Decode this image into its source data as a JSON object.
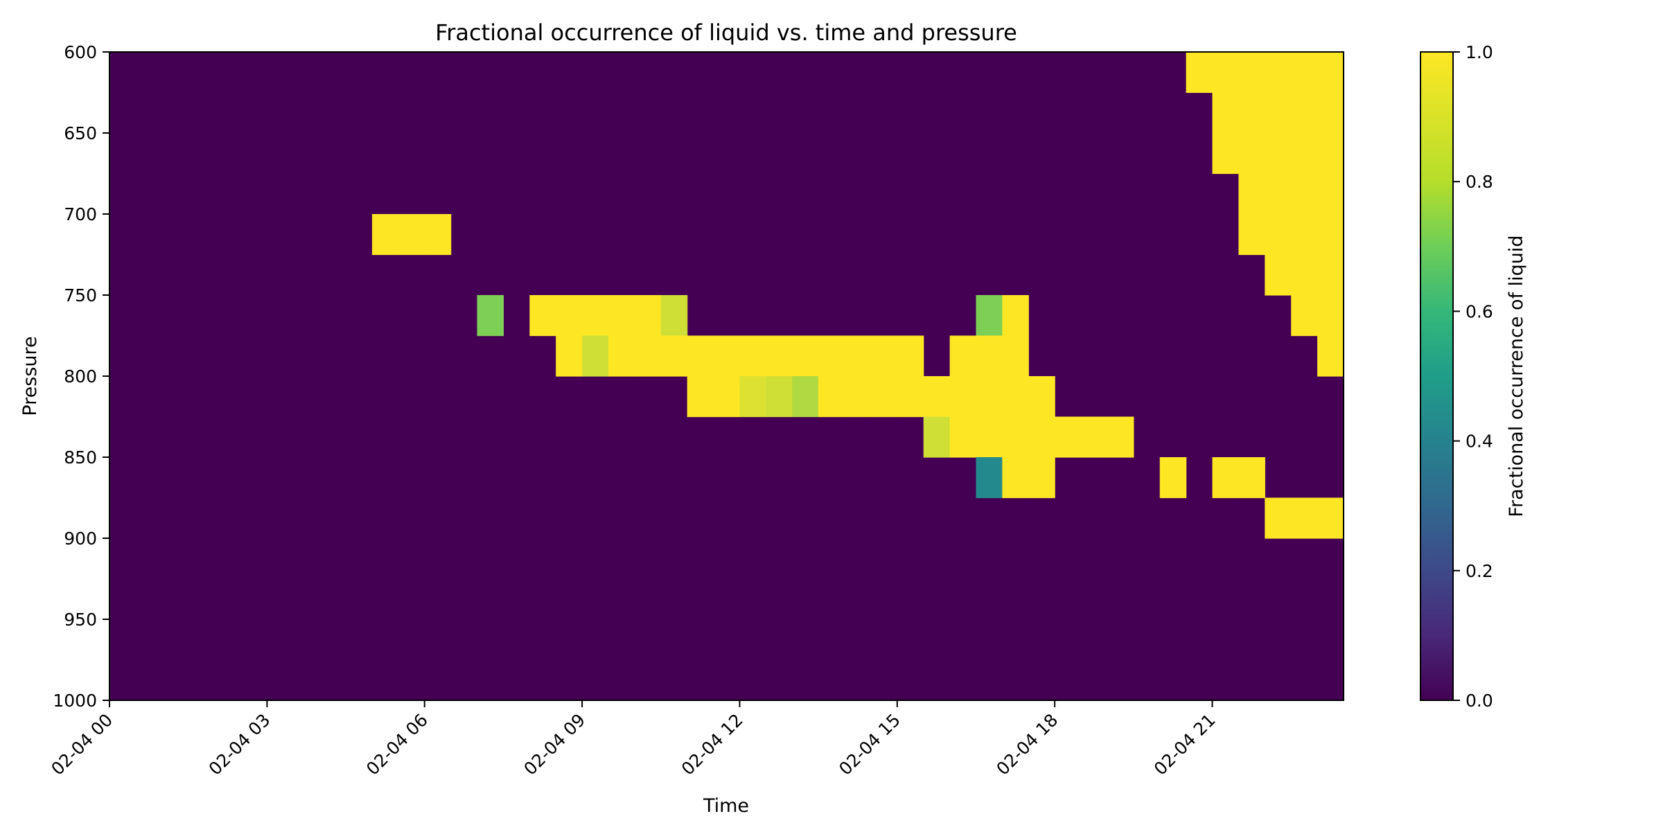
{
  "chart_data": {
    "type": "heatmap",
    "title": "Fractional occurrence of liquid vs. time and pressure",
    "xlabel": "Time",
    "ylabel": "Pressure",
    "colorbar_label": "Fractional occurrence of liquid",
    "colormap": "viridis",
    "colormap_stops": [
      "#440154",
      "#3b528b",
      "#21918c",
      "#5ec962",
      "#fde725"
    ],
    "value_range": [
      0,
      1
    ],
    "x_ticks": [
      "02-04 00",
      "02-04 03",
      "02-04 06",
      "02-04 09",
      "02-04 12",
      "02-04 15",
      "02-04 18",
      "02-04 21"
    ],
    "y_ticks": [
      "600",
      "650",
      "700",
      "750",
      "800",
      "850",
      "900",
      "950",
      "1000"
    ],
    "colorbar_ticks": [
      "0.0",
      "0.2",
      "0.4",
      "0.6",
      "0.8",
      "1.0"
    ],
    "time_range_hours": [
      0,
      23.5
    ],
    "time_bin_hours": 0.5,
    "pressure_range": [
      600,
      1000
    ],
    "pressure_bin": 25,
    "pressure_bins_top": [
      600,
      625,
      650,
      675,
      700,
      725,
      750,
      775,
      800,
      825,
      850,
      875,
      900,
      925,
      950,
      975
    ],
    "background_value": 0,
    "cells": [
      {
        "row": 0,
        "col": 41,
        "v": 1
      },
      {
        "row": 0,
        "col": 42,
        "v": 1
      },
      {
        "row": 0,
        "col": 43,
        "v": 1
      },
      {
        "row": 0,
        "col": 44,
        "v": 1
      },
      {
        "row": 0,
        "col": 45,
        "v": 1
      },
      {
        "row": 0,
        "col": 46,
        "v": 1
      },
      {
        "row": 1,
        "col": 42,
        "v": 1
      },
      {
        "row": 1,
        "col": 43,
        "v": 1
      },
      {
        "row": 1,
        "col": 44,
        "v": 1
      },
      {
        "row": 1,
        "col": 45,
        "v": 1
      },
      {
        "row": 1,
        "col": 46,
        "v": 1
      },
      {
        "row": 2,
        "col": 42,
        "v": 1
      },
      {
        "row": 2,
        "col": 43,
        "v": 1
      },
      {
        "row": 2,
        "col": 44,
        "v": 1
      },
      {
        "row": 2,
        "col": 45,
        "v": 1
      },
      {
        "row": 2,
        "col": 46,
        "v": 1
      },
      {
        "row": 3,
        "col": 43,
        "v": 1
      },
      {
        "row": 3,
        "col": 44,
        "v": 1
      },
      {
        "row": 3,
        "col": 45,
        "v": 1
      },
      {
        "row": 3,
        "col": 46,
        "v": 1
      },
      {
        "row": 4,
        "col": 10,
        "v": 1
      },
      {
        "row": 4,
        "col": 11,
        "v": 1
      },
      {
        "row": 4,
        "col": 12,
        "v": 1
      },
      {
        "row": 4,
        "col": 43,
        "v": 1
      },
      {
        "row": 4,
        "col": 44,
        "v": 1
      },
      {
        "row": 4,
        "col": 45,
        "v": 1
      },
      {
        "row": 4,
        "col": 46,
        "v": 1
      },
      {
        "row": 5,
        "col": 44,
        "v": 1
      },
      {
        "row": 5,
        "col": 45,
        "v": 1
      },
      {
        "row": 5,
        "col": 46,
        "v": 1
      },
      {
        "row": 6,
        "col": 14,
        "v": 0.8
      },
      {
        "row": 6,
        "col": 16,
        "v": 1
      },
      {
        "row": 6,
        "col": 17,
        "v": 1
      },
      {
        "row": 6,
        "col": 18,
        "v": 1
      },
      {
        "row": 6,
        "col": 19,
        "v": 1
      },
      {
        "row": 6,
        "col": 20,
        "v": 1
      },
      {
        "row": 6,
        "col": 21,
        "v": 0.93
      },
      {
        "row": 6,
        "col": 33,
        "v": 0.8
      },
      {
        "row": 6,
        "col": 34,
        "v": 1
      },
      {
        "row": 6,
        "col": 45,
        "v": 1
      },
      {
        "row": 6,
        "col": 46,
        "v": 1
      },
      {
        "row": 7,
        "col": 17,
        "v": 1
      },
      {
        "row": 7,
        "col": 18,
        "v": 0.93
      },
      {
        "row": 7,
        "col": 19,
        "v": 1
      },
      {
        "row": 7,
        "col": 20,
        "v": 1
      },
      {
        "row": 7,
        "col": 21,
        "v": 1
      },
      {
        "row": 7,
        "col": 22,
        "v": 1
      },
      {
        "row": 7,
        "col": 23,
        "v": 1
      },
      {
        "row": 7,
        "col": 24,
        "v": 1
      },
      {
        "row": 7,
        "col": 25,
        "v": 1
      },
      {
        "row": 7,
        "col": 26,
        "v": 1
      },
      {
        "row": 7,
        "col": 27,
        "v": 1
      },
      {
        "row": 7,
        "col": 28,
        "v": 1
      },
      {
        "row": 7,
        "col": 29,
        "v": 1
      },
      {
        "row": 7,
        "col": 30,
        "v": 1
      },
      {
        "row": 7,
        "col": 32,
        "v": 1
      },
      {
        "row": 7,
        "col": 33,
        "v": 1
      },
      {
        "row": 7,
        "col": 34,
        "v": 1
      },
      {
        "row": 7,
        "col": 46,
        "v": 1
      },
      {
        "row": 8,
        "col": 22,
        "v": 1
      },
      {
        "row": 8,
        "col": 23,
        "v": 1
      },
      {
        "row": 8,
        "col": 24,
        "v": 0.95
      },
      {
        "row": 8,
        "col": 25,
        "v": 0.93
      },
      {
        "row": 8,
        "col": 26,
        "v": 0.88
      },
      {
        "row": 8,
        "col": 27,
        "v": 1
      },
      {
        "row": 8,
        "col": 28,
        "v": 1
      },
      {
        "row": 8,
        "col": 29,
        "v": 1
      },
      {
        "row": 8,
        "col": 30,
        "v": 1
      },
      {
        "row": 8,
        "col": 31,
        "v": 1
      },
      {
        "row": 8,
        "col": 32,
        "v": 1
      },
      {
        "row": 8,
        "col": 33,
        "v": 1
      },
      {
        "row": 8,
        "col": 34,
        "v": 1
      },
      {
        "row": 8,
        "col": 35,
        "v": 1
      },
      {
        "row": 9,
        "col": 31,
        "v": 0.93
      },
      {
        "row": 9,
        "col": 32,
        "v": 1
      },
      {
        "row": 9,
        "col": 33,
        "v": 1
      },
      {
        "row": 9,
        "col": 34,
        "v": 1
      },
      {
        "row": 9,
        "col": 35,
        "v": 1
      },
      {
        "row": 9,
        "col": 36,
        "v": 1
      },
      {
        "row": 9,
        "col": 37,
        "v": 1
      },
      {
        "row": 9,
        "col": 38,
        "v": 1
      },
      {
        "row": 10,
        "col": 33,
        "v": 0.47
      },
      {
        "row": 10,
        "col": 34,
        "v": 1
      },
      {
        "row": 10,
        "col": 35,
        "v": 1
      },
      {
        "row": 10,
        "col": 40,
        "v": 1
      },
      {
        "row": 10,
        "col": 42,
        "v": 1
      },
      {
        "row": 10,
        "col": 43,
        "v": 1
      },
      {
        "row": 11,
        "col": 44,
        "v": 1
      },
      {
        "row": 11,
        "col": 45,
        "v": 1
      },
      {
        "row": 11,
        "col": 46,
        "v": 1
      }
    ]
  }
}
